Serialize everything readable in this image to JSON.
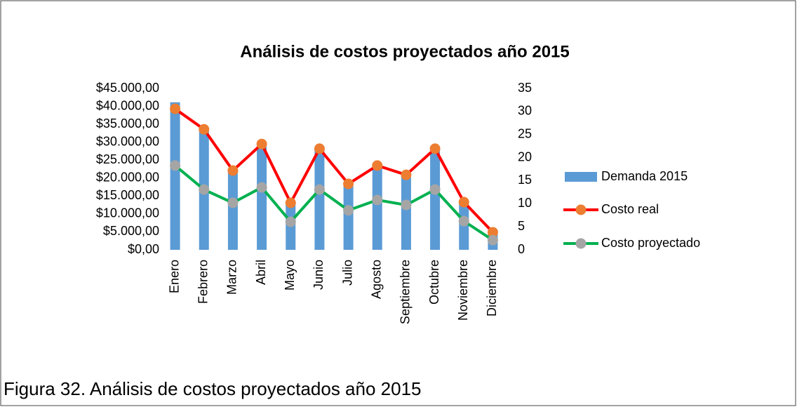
{
  "chart_data": {
    "type": "bar_line_combo",
    "title": "Análisis de costos proyectados año 2015",
    "caption": "Figura 32. Análisis de costos proyectados año 2015",
    "categories": [
      "Enero",
      "Febrero",
      "Marzo",
      "Abril",
      "Mayo",
      "Junio",
      "Julio",
      "Agosto",
      "Septiembre",
      "Octubre",
      "Noviembre",
      "Diciembre"
    ],
    "series": [
      {
        "name": "Demanda 2015",
        "type": "bar",
        "color": "#5b9bd5",
        "axis": "y2",
        "values": [
          32,
          26,
          17,
          23,
          10,
          22,
          14,
          18,
          16,
          22,
          10,
          4
        ]
      },
      {
        "name": "Costo real",
        "type": "line",
        "color": "#ff0000",
        "marker_color": "#ed7d31",
        "axis": "y",
        "values": [
          39300,
          33600,
          22100,
          29500,
          13100,
          28200,
          18400,
          23500,
          20900,
          28200,
          13300,
          4900
        ]
      },
      {
        "name": "Costo proyectado",
        "type": "line",
        "color": "#00b050",
        "marker_color": "#a5a5a5",
        "axis": "y",
        "values": [
          23500,
          16800,
          13100,
          17400,
          7800,
          16800,
          11000,
          13900,
          12500,
          16800,
          8000,
          2700
        ]
      }
    ],
    "ylim": [
      0,
      45000
    ],
    "yticks": [
      {
        "value": 0,
        "label": "$0,00"
      },
      {
        "value": 5000,
        "label": "$5.000,00"
      },
      {
        "value": 10000,
        "label": "$10.000,00"
      },
      {
        "value": 15000,
        "label": "$15.000,00"
      },
      {
        "value": 20000,
        "label": "$20.000,00"
      },
      {
        "value": 25000,
        "label": "$25.000,00"
      },
      {
        "value": 30000,
        "label": "$30.000,00"
      },
      {
        "value": 35000,
        "label": "$35.000,00"
      },
      {
        "value": 40000,
        "label": "$40.000,00"
      },
      {
        "value": 45000,
        "label": "$45.000,00"
      }
    ],
    "y2lim": [
      0,
      35
    ],
    "y2ticks": [
      0,
      5,
      10,
      15,
      20,
      25,
      30,
      35
    ],
    "legend": "right"
  }
}
